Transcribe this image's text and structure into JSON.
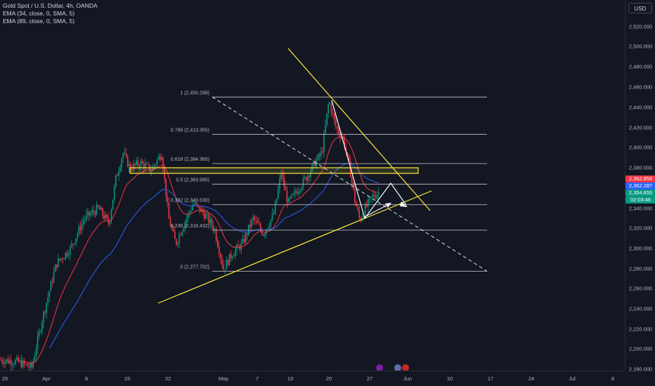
{
  "legend": {
    "symbol": "Gold Spot / U.S. Dollar, 4h, OANDA",
    "ema1": "EMA (34, close, 0, SMA, 5)",
    "ema2": "EMA (89, close, 0, SMA, 5)"
  },
  "currency_button": "USD",
  "price_axis": {
    "ticks": [
      "2,520.000",
      "2,500.000",
      "2,480.000",
      "2,460.000",
      "2,440.000",
      "2,420.000",
      "2,400.000",
      "2,380.000",
      "2,340.000",
      "2,320.000",
      "2,300.000",
      "2,280.000",
      "2,260.000",
      "2,240.000",
      "2,220.000",
      "2,200.000",
      "2,180.000"
    ],
    "tags": {
      "ema34": "2,362.856",
      "ema89": "2,362.287",
      "last_price": "2,354.655",
      "countdown": "02:03:46"
    }
  },
  "time_axis": {
    "ticks": [
      "25",
      "Apr",
      "8",
      "15",
      "22",
      "May",
      "7",
      "13",
      "20",
      "27",
      "Jun",
      "10",
      "17",
      "24",
      "Jul",
      "8"
    ]
  },
  "fib_levels": [
    {
      "label": "1 (2,450.288)",
      "price": 2450.288
    },
    {
      "label": "0.786 (2,413.355)",
      "price": 2413.355
    },
    {
      "label": "0.618 (2,384.360)",
      "price": 2384.36
    },
    {
      "label": "0.5 (2,363.995)",
      "price": 2363.995
    },
    {
      "label": "0.382 (2,343.630)",
      "price": 2343.63
    },
    {
      "label": "0.236 (2,318.432)",
      "price": 2318.432
    },
    {
      "label": "0 (2,277.702)",
      "price": 2277.702
    }
  ],
  "colors": {
    "background": "#131722",
    "bull": "#089981",
    "bear": "#f23645",
    "ema34": "#f23645",
    "ema89": "#2962ff",
    "drawing": "#ffeb3b",
    "fib_line": "#b2b5be"
  },
  "event_icons": [
    "lightning-icon",
    "flag-icon",
    "flag-icon"
  ]
}
